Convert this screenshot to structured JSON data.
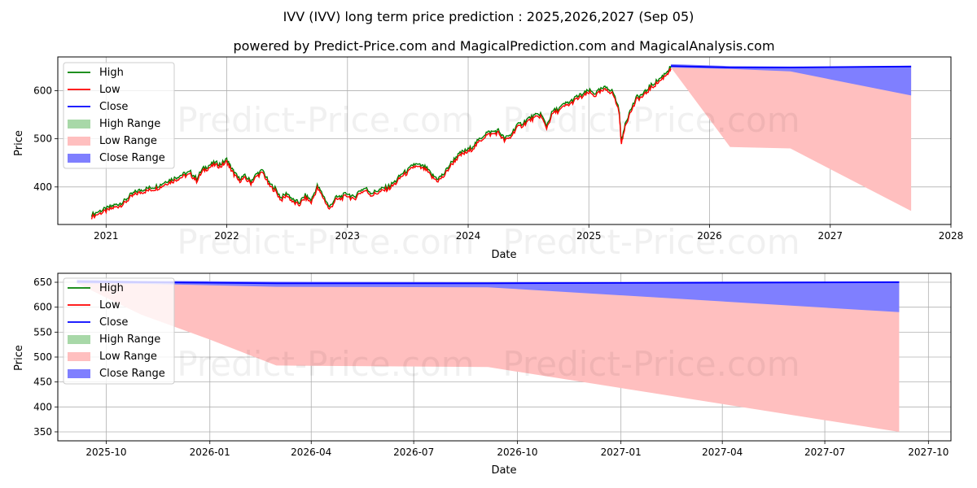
{
  "title": "IVV (IVV) long term price prediction : 2025,2026,2027 (Sep 05)",
  "subtitle": "powered by Predict-Price.com and MagicalPrediction.com and MagicalAnalysis.com",
  "watermark": "Predict-Price.com",
  "colors": {
    "high": "#008000",
    "low": "#ff0000",
    "close": "#0000ff",
    "high_range": "#a8d8a8",
    "low_range": "#ffbfbf",
    "close_range": "#7f7fff",
    "grid": "#b0b0b0"
  },
  "legend": [
    "High",
    "Low",
    "Close",
    "High Range",
    "Low Range",
    "Close Range"
  ],
  "chart_data": [
    {
      "type": "line",
      "xlabel": "Date",
      "ylabel": "Price",
      "xlim": [
        2020.6,
        2028.0
      ],
      "ylim": [
        322,
        670
      ],
      "x_ticks": [
        2021,
        2022,
        2023,
        2024,
        2025,
        2026,
        2027,
        2028
      ],
      "x_tick_labels": [
        "2021",
        "2022",
        "2023",
        "2024",
        "2025",
        "2026",
        "2027",
        "2028"
      ],
      "y_ticks": [
        400,
        500,
        600
      ],
      "y_tick_labels": [
        "400",
        "500",
        "600"
      ],
      "history": {
        "x": [
          2020.88,
          2020.95,
          2021.0,
          2021.05,
          2021.1,
          2021.15,
          2021.2,
          2021.25,
          2021.3,
          2021.35,
          2021.4,
          2021.45,
          2021.5,
          2021.55,
          2021.6,
          2021.65,
          2021.7,
          2021.75,
          2021.8,
          2021.85,
          2021.9,
          2021.95,
          2022.0,
          2022.03,
          2022.06,
          2022.1,
          2022.15,
          2022.2,
          2022.25,
          2022.3,
          2022.35,
          2022.4,
          2022.45,
          2022.5,
          2022.55,
          2022.6,
          2022.65,
          2022.7,
          2022.75,
          2022.8,
          2022.85,
          2022.9,
          2022.95,
          2023.0,
          2023.05,
          2023.1,
          2023.15,
          2023.2,
          2023.25,
          2023.3,
          2023.35,
          2023.4,
          2023.45,
          2023.5,
          2023.55,
          2023.6,
          2023.65,
          2023.7,
          2023.75,
          2023.8,
          2023.85,
          2023.9,
          2023.95,
          2024.0,
          2024.05,
          2024.1,
          2024.15,
          2024.2,
          2024.25,
          2024.3,
          2024.35,
          2024.4,
          2024.45,
          2024.5,
          2024.55,
          2024.6,
          2024.65,
          2024.7,
          2024.75,
          2024.8,
          2024.85,
          2024.9,
          2024.95,
          2025.0,
          2025.05,
          2025.1,
          2025.15,
          2025.2,
          2025.25,
          2025.27,
          2025.3,
          2025.35,
          2025.4,
          2025.45,
          2025.5,
          2025.55,
          2025.6,
          2025.65,
          2025.68
        ],
        "close": [
          340,
          348,
          352,
          358,
          362,
          368,
          380,
          388,
          392,
          395,
          398,
          402,
          410,
          414,
          420,
          425,
          428,
          415,
          435,
          442,
          448,
          445,
          455,
          440,
          428,
          415,
          420,
          410,
          425,
          432,
          405,
          395,
          375,
          385,
          370,
          365,
          380,
          370,
          400,
          380,
          355,
          375,
          378,
          385,
          375,
          390,
          395,
          385,
          390,
          395,
          400,
          410,
          425,
          432,
          445,
          442,
          438,
          422,
          415,
          425,
          445,
          460,
          470,
          475,
          485,
          498,
          510,
          512,
          515,
          498,
          505,
          525,
          530,
          540,
          545,
          550,
          525,
          555,
          560,
          570,
          575,
          585,
          590,
          598,
          592,
          600,
          605,
          595,
          560,
          490,
          530,
          560,
          585,
          590,
          605,
          615,
          625,
          638,
          648
        ]
      },
      "forecast": {
        "x": [
          2025.68,
          2026.17,
          2026.67,
          2027.67
        ],
        "close": [
          651,
          648,
          648,
          650
        ],
        "close_range_low": [
          648,
          645,
          640,
          590
        ],
        "close_range_high": [
          655,
          651,
          650,
          652
        ],
        "low_range_low": [
          648,
          483,
          480,
          350
        ],
        "low_range_high": [
          651,
          648,
          648,
          650
        ]
      }
    },
    {
      "type": "area",
      "xlabel": "Date",
      "ylabel": "Price",
      "xlim": [
        "2025-08-19",
        "2027-10-21"
      ],
      "ylim": [
        332,
        668
      ],
      "x_ticks": [
        "2025-10-01",
        "2026-01-01",
        "2026-04-01",
        "2026-07-01",
        "2026-10-01",
        "2027-01-01",
        "2027-04-01",
        "2027-07-01",
        "2027-10-01"
      ],
      "x_tick_labels": [
        "2025-10",
        "2026-01",
        "2026-04",
        "2026-07",
        "2026-10",
        "2027-01",
        "2027-04",
        "2027-07",
        "2027-10"
      ],
      "y_ticks": [
        350,
        400,
        450,
        500,
        550,
        600,
        650
      ],
      "y_tick_labels": [
        "350",
        "400",
        "450",
        "500",
        "550",
        "600",
        "650"
      ],
      "forecast": {
        "x": [
          "2025-09-05",
          "2025-11-01",
          "2026-01-01",
          "2026-03-01",
          "2026-09-05",
          "2027-09-05"
        ],
        "close": [
          651,
          650,
          649,
          648,
          648,
          650
        ],
        "close_range_low": [
          648,
          647,
          644,
          641,
          640,
          590
        ],
        "close_range_high": [
          655,
          653,
          652,
          651,
          650,
          652
        ],
        "low_range_low": [
          648,
          585,
          535,
          483,
          480,
          350
        ],
        "low_range_high": [
          651,
          650,
          649,
          648,
          648,
          650
        ]
      }
    }
  ]
}
